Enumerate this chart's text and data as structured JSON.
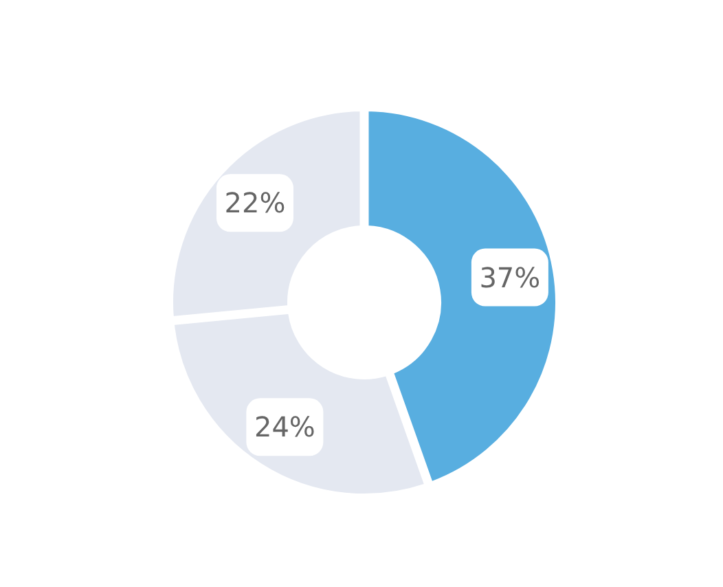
{
  "chart_data": {
    "type": "donut",
    "categories": [
      null,
      null,
      null
    ],
    "values": [
      37,
      24,
      22
    ],
    "colors": [
      "#58aee0",
      "#e4e8f1",
      "#e4e8f1"
    ],
    "value_labels": [
      "37%",
      "24%",
      "22%"
    ]
  }
}
